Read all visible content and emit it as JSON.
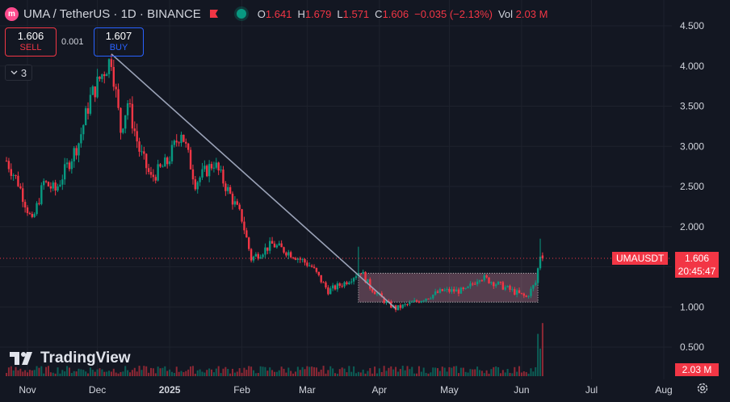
{
  "header": {
    "logo_text": "m",
    "title": "UMA / TetherUS · 1D · BINANCE",
    "ohlc": [
      {
        "k": "O",
        "v": "1.641"
      },
      {
        "k": "H",
        "v": "1.679"
      },
      {
        "k": "L",
        "v": "1.571"
      },
      {
        "k": "C",
        "v": "1.606"
      }
    ],
    "change": "−0.035 (−2.13%)",
    "vol_label": "Vol",
    "vol_value": "2.03 M"
  },
  "trade": {
    "sell_price": "1.606",
    "sell_label": "SELL",
    "buy_price": "1.607",
    "buy_label": "BUY",
    "spread": "0.001"
  },
  "indicators_toggle": {
    "count": "3"
  },
  "watermark": "TradingView",
  "price_tag": {
    "symbol": "UMAUSDT",
    "price": "1.606",
    "countdown": "20:45:47"
  },
  "volume_tag": "2.03 M",
  "colors": {
    "background": "#131722",
    "up": "#089981",
    "down": "#f23645",
    "grid": "#1e222d",
    "trendline": "#9ba3b8",
    "text": "#d1d4dc"
  },
  "chart_data": {
    "type": "candlestick",
    "symbol": "UMAUSDT",
    "interval": "1D",
    "x_tick_labels": [
      "Nov",
      "Dec",
      "2025",
      "Feb",
      "Mar",
      "Apr",
      "May",
      "Jun",
      "Jul",
      "Aug"
    ],
    "y_tick_labels": [
      "4.500",
      "4.000",
      "3.500",
      "3.000",
      "2.500",
      "2.000",
      "1.500",
      "1.000",
      "0.500"
    ],
    "ylim": [
      0.5,
      4.5
    ],
    "grid": true,
    "last_price": 1.606,
    "series": [
      {
        "date": "2024-10-23",
        "close": 2.82
      },
      {
        "date": "2024-10-28",
        "close": 2.55
      },
      {
        "date": "2024-11-03",
        "close": 2.05
      },
      {
        "date": "2024-11-08",
        "close": 2.55
      },
      {
        "date": "2024-11-13",
        "close": 2.45
      },
      {
        "date": "2024-11-18",
        "close": 2.75
      },
      {
        "date": "2024-11-23",
        "close": 3.05
      },
      {
        "date": "2024-11-28",
        "close": 3.6
      },
      {
        "date": "2024-12-03",
        "close": 3.9
      },
      {
        "date": "2024-12-07",
        "close": 4.1
      },
      {
        "date": "2024-12-11",
        "close": 3.2
      },
      {
        "date": "2024-12-14",
        "close": 3.55
      },
      {
        "date": "2024-12-19",
        "close": 2.95
      },
      {
        "date": "2024-12-24",
        "close": 2.6
      },
      {
        "date": "2024-12-31",
        "close": 2.8
      },
      {
        "date": "2025-01-06",
        "close": 3.2
      },
      {
        "date": "2025-01-12",
        "close": 2.55
      },
      {
        "date": "2025-01-20",
        "close": 2.8
      },
      {
        "date": "2025-01-26",
        "close": 2.45
      },
      {
        "date": "2025-02-01",
        "close": 2.1
      },
      {
        "date": "2025-02-05",
        "close": 1.6
      },
      {
        "date": "2025-02-14",
        "close": 1.78
      },
      {
        "date": "2025-02-23",
        "close": 1.65
      },
      {
        "date": "2025-03-03",
        "close": 1.5
      },
      {
        "date": "2025-03-10",
        "close": 1.2
      },
      {
        "date": "2025-03-17",
        "close": 1.3
      },
      {
        "date": "2025-03-24",
        "close": 1.45
      },
      {
        "date": "2025-03-28",
        "close": 1.25
      },
      {
        "date": "2025-04-04",
        "close": 1.05
      },
      {
        "date": "2025-04-08",
        "close": 0.98
      },
      {
        "date": "2025-04-18",
        "close": 1.08
      },
      {
        "date": "2025-04-28",
        "close": 1.2
      },
      {
        "date": "2025-05-08",
        "close": 1.2
      },
      {
        "date": "2025-05-14",
        "close": 1.38
      },
      {
        "date": "2025-05-22",
        "close": 1.28
      },
      {
        "date": "2025-05-28",
        "close": 1.2
      },
      {
        "date": "2025-06-03",
        "close": 1.12
      },
      {
        "date": "2025-06-07",
        "close": 1.3
      },
      {
        "date": "2025-06-09",
        "close": 1.65
      },
      {
        "date": "2025-06-10",
        "close": 1.606
      }
    ],
    "volume_note": "Volume histogram bars along bottom; last bar 2.03 M"
  }
}
